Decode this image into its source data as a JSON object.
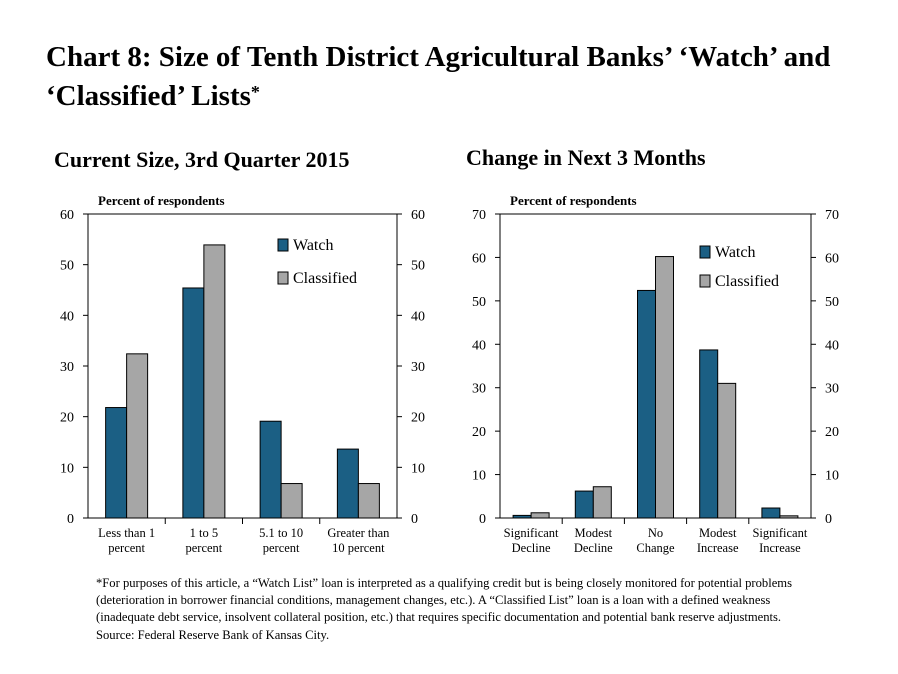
{
  "title": {
    "main": "Chart 8: Size of Tenth District Agricultural Banks’ ‘Watch’ and ‘Classified’ Lists",
    "asterisk": "*"
  },
  "colors": {
    "watch": "#1B5F84",
    "classified": "#A6A6A6"
  },
  "chart_data": [
    {
      "type": "bar",
      "title": "Current Size, 3rd Quarter 2015",
      "ylabel": "Percent of respondents",
      "ylim": [
        0,
        60
      ],
      "yticks": [
        0,
        10,
        20,
        30,
        40,
        50,
        60
      ],
      "categories": [
        [
          "Less than 1",
          "percent"
        ],
        [
          "1 to 5",
          "percent"
        ],
        [
          "5.1 to 10",
          "percent"
        ],
        [
          "Greater than",
          "10 percent"
        ]
      ],
      "series": [
        {
          "name": "Watch",
          "values": [
            21.8,
            45.4,
            19.1,
            13.6
          ]
        },
        {
          "name": "Classified",
          "values": [
            32.4,
            53.9,
            6.8,
            6.8
          ]
        }
      ],
      "legend": "top-right",
      "grid": false
    },
    {
      "type": "bar",
      "title": "Change in Next 3 Months",
      "ylabel": "Percent of respondents",
      "ylim": [
        0,
        70
      ],
      "yticks": [
        0,
        10,
        20,
        30,
        40,
        50,
        60,
        70
      ],
      "categories": [
        [
          "Significant",
          "Decline"
        ],
        [
          "Modest",
          "Decline"
        ],
        [
          "No",
          "Change"
        ],
        [
          "Modest",
          "Increase"
        ],
        [
          "Significant",
          "Increase"
        ]
      ],
      "series": [
        {
          "name": "Watch",
          "values": [
            0.6,
            6.2,
            52.4,
            38.7,
            2.3
          ]
        },
        {
          "name": "Classified",
          "values": [
            1.2,
            7.2,
            60.2,
            31.0,
            0.5
          ]
        }
      ],
      "legend": "top-right",
      "grid": false
    }
  ],
  "footnote": {
    "text": "*For purposes of this article, a “Watch List” loan is interpreted as a qualifying credit but is being closely monitored for potential problems (deterioration in borrower financial conditions, management changes, etc.). A “Classified List” loan is a loan with a defined weakness (inadequate debt service, insolvent collateral position, etc.) that requires specific documentation and potential bank reserve adjustments.",
    "source": "Source: Federal Reserve Bank of Kansas City."
  }
}
